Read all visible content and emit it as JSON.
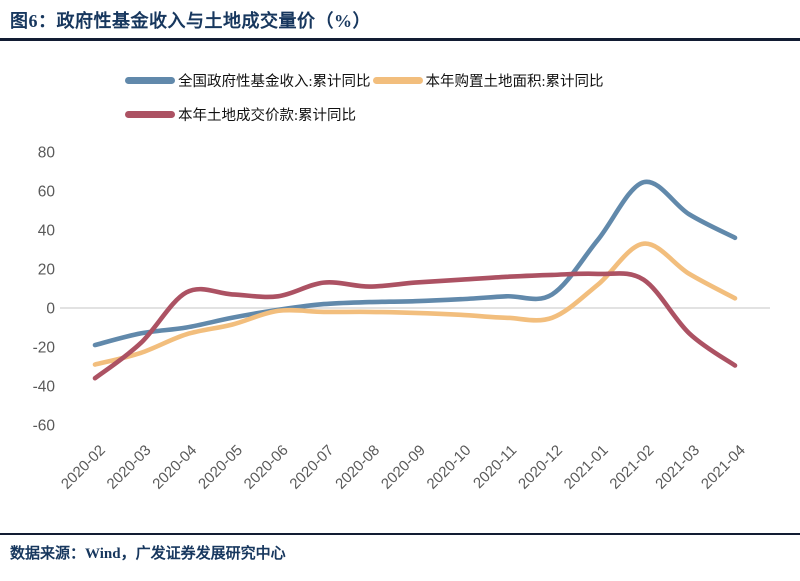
{
  "figure": {
    "title": "图6：政府性基金收入与土地成交量价（%）",
    "source": "数据来源：Wind，广发证券发展研究中心"
  },
  "colors": {
    "accent_navy": "#17375E",
    "series_blue": "#6189AB",
    "series_orange": "#F2BE7D",
    "series_red": "#AC5263",
    "zero_gridline": "#D8D8D8",
    "axis_text": "#595959"
  },
  "chart_data": {
    "type": "line",
    "title": "政府性基金收入与土地成交量价（%）",
    "categories": [
      "2020-02",
      "2020-03",
      "2020-04",
      "2020-05",
      "2020-06",
      "2020-07",
      "2020-08",
      "2020-09",
      "2020-10",
      "2020-11",
      "2020-12",
      "2021-01",
      "2021-02",
      "2021-03",
      "2021-04"
    ],
    "series": [
      {
        "name": "全国政府性基金收入:累计同比",
        "color_key": "series_blue",
        "values": [
          -19,
          -13,
          -10,
          -5,
          -1,
          2,
          3,
          3.5,
          4.5,
          6,
          7,
          35,
          64.5,
          48,
          36
        ]
      },
      {
        "name": "本年购置土地面积:累计同比",
        "color_key": "series_orange",
        "values": [
          -29,
          -23,
          -13.5,
          -8.5,
          -1.5,
          -2,
          -2,
          -2.5,
          -3.5,
          -5,
          -5,
          12,
          33,
          17.5,
          5
        ]
      },
      {
        "name": "本年土地成交价款:累计同比",
        "color_key": "series_red",
        "values": [
          -36,
          -18,
          8,
          7,
          6,
          13,
          11,
          13,
          14.5,
          16,
          17,
          17.5,
          14.5,
          -13,
          -29.5
        ]
      }
    ],
    "ylim": [
      -60,
      80
    ],
    "yticks": [
      80,
      60,
      40,
      20,
      0,
      -20,
      -40,
      -60
    ],
    "xlabel": "",
    "ylabel": "",
    "grid": "zero-line-only",
    "legend_position": "top",
    "legend_rows": [
      [
        0,
        1
      ],
      [
        2
      ]
    ]
  }
}
